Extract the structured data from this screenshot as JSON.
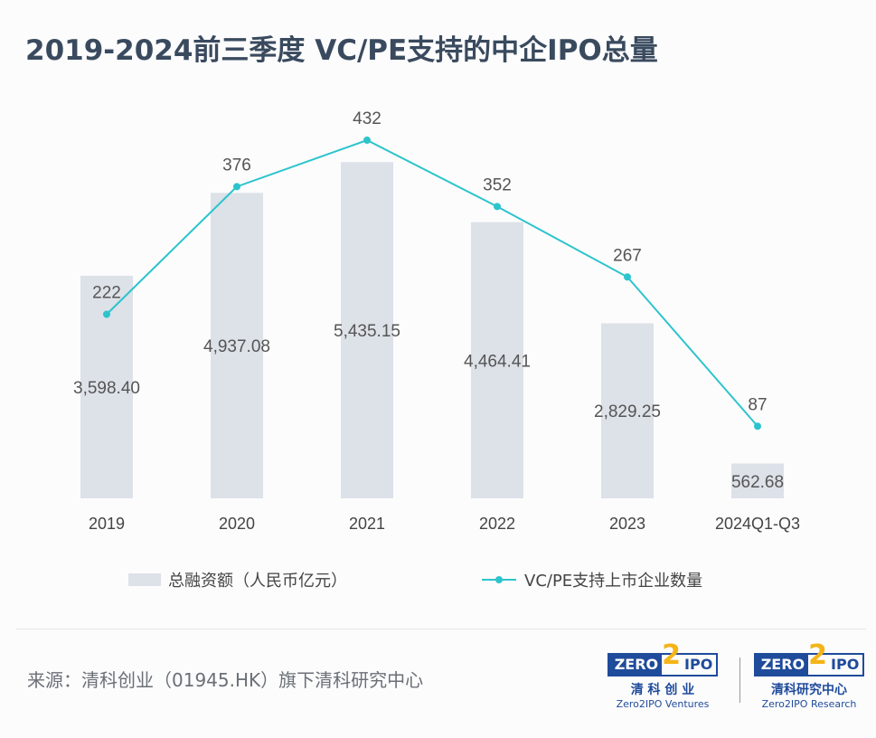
{
  "title": "2019-2024前三季度 VC/PE支持的中企IPO总量",
  "chart_data": {
    "type": "bar+line",
    "title": "2019-2024前三季度 VC/PE支持的中企IPO总量",
    "categories": [
      "2019",
      "2020",
      "2021",
      "2022",
      "2023",
      "2024Q1-Q3"
    ],
    "series": [
      {
        "name": "总融资额（人民币亿元）",
        "type": "bar",
        "color": "#dde1e8",
        "values": [
          3598.4,
          4937.08,
          5435.15,
          4464.41,
          2829.25,
          562.68
        ],
        "labels": [
          "3,598.40",
          "4,937.08",
          "5,435.15",
          "4,464.41",
          "2,829.25",
          "562.68"
        ]
      },
      {
        "name": "VC/PE支持上市企业数量",
        "type": "line",
        "color": "#2cc4cc",
        "values": [
          222,
          376,
          432,
          352,
          267,
          87
        ],
        "labels": [
          "222",
          "376",
          "432",
          "352",
          "267",
          "87"
        ]
      }
    ],
    "bar_ylim": [
      0,
      5950
    ],
    "line_ylim": [
      0,
      600
    ],
    "legend": "bottom",
    "grid": false
  },
  "footer": {
    "source": "来源：清科创业（01945.HK）旗下清科研究中心",
    "logos": [
      {
        "brand": "ZERO2IPO",
        "cn": "清 科 创 业",
        "en": "Zero2IPO Ventures"
      },
      {
        "brand": "ZERO2IPO",
        "cn": "清科研究中心",
        "en": "Zero2IPO Research"
      }
    ]
  }
}
